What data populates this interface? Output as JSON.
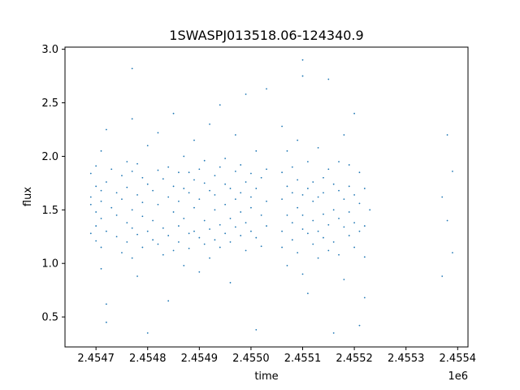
{
  "chart_data": {
    "type": "scatter",
    "title": "1SWASPJ013518.06-124340.9",
    "xlabel": "time",
    "ylabel": "flux",
    "x_offset_label": "1e6",
    "xlim": [
      2.45464,
      2.45542
    ],
    "ylim": [
      0.22,
      3.02
    ],
    "grid": false,
    "legend": "none",
    "color": "#1f77b4",
    "x_ticks": [
      2.4547,
      2.4548,
      2.4549,
      2.455,
      2.4551,
      2.4552,
      2.4553,
      2.4554
    ],
    "x_tick_labels": [
      "2.4547",
      "2.4548",
      "2.4549",
      "2.4550",
      "2.4551",
      "2.4552",
      "2.4553",
      "2.4554"
    ],
    "y_ticks": [
      0.5,
      1.0,
      1.5,
      2.0,
      2.5,
      3.0
    ],
    "y_tick_labels": [
      "0.5",
      "1.0",
      "1.5",
      "2.0",
      "2.5",
      "3.0"
    ],
    "series": [
      {
        "points": [
          [
            2.45469,
            1.62
          ],
          [
            2.45469,
            1.28
          ],
          [
            2.45469,
            1.84
          ],
          [
            2.45469,
            1.55
          ],
          [
            2.4547,
            1.35
          ],
          [
            2.4547,
            1.72
          ],
          [
            2.4547,
            1.21
          ],
          [
            2.4547,
            1.48
          ],
          [
            2.4547,
            1.91
          ],
          [
            2.45471,
            1.15
          ],
          [
            2.45471,
            1.68
          ],
          [
            2.45471,
            1.42
          ],
          [
            2.45471,
            2.05
          ],
          [
            2.45471,
            0.95
          ],
          [
            2.45471,
            1.58
          ],
          [
            2.45472,
            1.3
          ],
          [
            2.45472,
            1.76
          ],
          [
            2.45472,
            2.25
          ],
          [
            2.45472,
            0.62
          ],
          [
            2.45472,
            0.45
          ],
          [
            2.45473,
            1.52
          ],
          [
            2.45473,
            1.88
          ],
          [
            2.45474,
            1.25
          ],
          [
            2.45474,
            1.66
          ],
          [
            2.45474,
            1.45
          ],
          [
            2.45475,
            1.82
          ],
          [
            2.45475,
            1.1
          ],
          [
            2.45475,
            1.6
          ],
          [
            2.45476,
            1.38
          ],
          [
            2.45476,
            1.95
          ],
          [
            2.45476,
            1.2
          ],
          [
            2.45476,
            1.71
          ],
          [
            2.45477,
            1.33
          ],
          [
            2.45477,
            1.86
          ],
          [
            2.45477,
            1.5
          ],
          [
            2.45477,
            2.82
          ],
          [
            2.45477,
            2.35
          ],
          [
            2.45477,
            1.05
          ],
          [
            2.45478,
            1.27
          ],
          [
            2.45478,
            1.64
          ],
          [
            2.45478,
            1.93
          ],
          [
            2.45478,
            0.88
          ],
          [
            2.45479,
            1.44
          ],
          [
            2.45479,
            1.8
          ],
          [
            2.45479,
            1.15
          ],
          [
            2.45479,
            1.57
          ],
          [
            2.4548,
            1.3
          ],
          [
            2.4548,
            1.74
          ],
          [
            2.4548,
            2.1
          ],
          [
            2.4548,
            0.35
          ],
          [
            2.45481,
            1.22
          ],
          [
            2.45481,
            1.68
          ],
          [
            2.45481,
            1.4
          ],
          [
            2.45482,
            1.87
          ],
          [
            2.45482,
            1.18
          ],
          [
            2.45482,
            1.55
          ],
          [
            2.45482,
            2.22
          ],
          [
            2.45483,
            1.33
          ],
          [
            2.45483,
            1.79
          ],
          [
            2.45483,
            1.08
          ],
          [
            2.45484,
            1.62
          ],
          [
            2.45484,
            1.26
          ],
          [
            2.45484,
            1.9
          ],
          [
            2.45484,
            0.65
          ],
          [
            2.45485,
            1.48
          ],
          [
            2.45485,
            1.72
          ],
          [
            2.45485,
            1.12
          ],
          [
            2.45485,
            2.4
          ],
          [
            2.45486,
            1.35
          ],
          [
            2.45486,
            1.85
          ],
          [
            2.45486,
            1.58
          ],
          [
            2.45486,
            1.2
          ],
          [
            2.45487,
            1.7
          ],
          [
            2.45487,
            1.42
          ],
          [
            2.45487,
            2.0
          ],
          [
            2.45487,
            0.98
          ],
          [
            2.45488,
            1.28
          ],
          [
            2.45488,
            1.66
          ],
          [
            2.45488,
            1.85
          ],
          [
            2.45488,
            1.14
          ],
          [
            2.45489,
            1.52
          ],
          [
            2.45489,
            1.78
          ],
          [
            2.45489,
            1.3
          ],
          [
            2.45489,
            2.15
          ],
          [
            2.4549,
            1.24
          ],
          [
            2.4549,
            1.6
          ],
          [
            2.4549,
            1.88
          ],
          [
            2.4549,
            0.92
          ],
          [
            2.45491,
            1.4
          ],
          [
            2.45491,
            1.75
          ],
          [
            2.45491,
            1.18
          ],
          [
            2.45491,
            1.96
          ],
          [
            2.45492,
            1.32
          ],
          [
            2.45492,
            1.68
          ],
          [
            2.45492,
            2.3
          ],
          [
            2.45492,
            1.05
          ],
          [
            2.45493,
            1.5
          ],
          [
            2.45493,
            1.82
          ],
          [
            2.45493,
            1.22
          ],
          [
            2.45493,
            1.64
          ],
          [
            2.45494,
            1.36
          ],
          [
            2.45494,
            1.9
          ],
          [
            2.45494,
            1.15
          ],
          [
            2.45494,
            2.48
          ],
          [
            2.45495,
            1.55
          ],
          [
            2.45495,
            1.28
          ],
          [
            2.45495,
            1.74
          ],
          [
            2.45495,
            1.98
          ],
          [
            2.45496,
            1.42
          ],
          [
            2.45496,
            1.7
          ],
          [
            2.45496,
            1.2
          ],
          [
            2.45496,
            0.82
          ],
          [
            2.45497,
            1.6
          ],
          [
            2.45497,
            1.34
          ],
          [
            2.45497,
            1.86
          ],
          [
            2.45497,
            2.2
          ],
          [
            2.45498,
            1.26
          ],
          [
            2.45498,
            1.66
          ],
          [
            2.45498,
            1.48
          ],
          [
            2.45498,
            1.92
          ],
          [
            2.45499,
            1.38
          ],
          [
            2.45499,
            1.76
          ],
          [
            2.45499,
            1.12
          ],
          [
            2.45499,
            2.58
          ],
          [
            2.455,
            1.52
          ],
          [
            2.455,
            1.3
          ],
          [
            2.455,
            1.84
          ],
          [
            2.455,
            1.62
          ],
          [
            2.45501,
            1.24
          ],
          [
            2.45501,
            1.7
          ],
          [
            2.45501,
            2.05
          ],
          [
            2.45501,
            0.38
          ],
          [
            2.45502,
            1.45
          ],
          [
            2.45502,
            1.8
          ],
          [
            2.45502,
            1.16
          ],
          [
            2.45503,
            1.58
          ],
          [
            2.45503,
            1.35
          ],
          [
            2.45503,
            1.88
          ],
          [
            2.45503,
            2.63
          ],
          [
            2.45506,
            1.6
          ],
          [
            2.45506,
            1.3
          ],
          [
            2.45506,
            1.85
          ],
          [
            2.45506,
            1.15
          ],
          [
            2.45506,
            2.28
          ],
          [
            2.45507,
            1.45
          ],
          [
            2.45507,
            1.72
          ],
          [
            2.45507,
            0.98
          ],
          [
            2.45507,
            2.05
          ],
          [
            2.45508,
            1.38
          ],
          [
            2.45508,
            1.66
          ],
          [
            2.45508,
            1.22
          ],
          [
            2.45508,
            1.9
          ],
          [
            2.45509,
            1.52
          ],
          [
            2.45509,
            1.78
          ],
          [
            2.45509,
            1.1
          ],
          [
            2.45509,
            2.15
          ],
          [
            2.4551,
            1.32
          ],
          [
            2.4551,
            1.64
          ],
          [
            2.4551,
            1.45
          ],
          [
            2.4551,
            2.9
          ],
          [
            2.4551,
            2.75
          ],
          [
            2.4551,
            0.9
          ],
          [
            2.45511,
            1.28
          ],
          [
            2.45511,
            1.7
          ],
          [
            2.45511,
            1.95
          ],
          [
            2.45511,
            0.72
          ],
          [
            2.45512,
            1.4
          ],
          [
            2.45512,
            1.76
          ],
          [
            2.45512,
            1.18
          ],
          [
            2.45512,
            1.58
          ],
          [
            2.45513,
            1.3
          ],
          [
            2.45513,
            1.62
          ],
          [
            2.45513,
            2.08
          ],
          [
            2.45513,
            1.05
          ],
          [
            2.45514,
            1.46
          ],
          [
            2.45514,
            1.8
          ],
          [
            2.45514,
            1.24
          ],
          [
            2.45514,
            1.66
          ],
          [
            2.45515,
            1.36
          ],
          [
            2.45515,
            1.88
          ],
          [
            2.45515,
            1.12
          ],
          [
            2.45515,
            2.72
          ],
          [
            2.45516,
            1.5
          ],
          [
            2.45516,
            1.74
          ],
          [
            2.45516,
            1.2
          ],
          [
            2.45516,
            0.35
          ],
          [
            2.45517,
            1.42
          ],
          [
            2.45517,
            1.68
          ],
          [
            2.45517,
            1.95
          ],
          [
            2.45517,
            1.08
          ],
          [
            2.45518,
            1.34
          ],
          [
            2.45518,
            1.6
          ],
          [
            2.45518,
            2.2
          ],
          [
            2.45518,
            0.85
          ],
          [
            2.45519,
            1.26
          ],
          [
            2.45519,
            1.72
          ],
          [
            2.45519,
            1.48
          ],
          [
            2.45519,
            1.92
          ],
          [
            2.4552,
            1.38
          ],
          [
            2.4552,
            1.64
          ],
          [
            2.4552,
            1.15
          ],
          [
            2.4552,
            2.4
          ],
          [
            2.45521,
            1.3
          ],
          [
            2.45521,
            1.56
          ],
          [
            2.45521,
            1.85
          ],
          [
            2.45521,
            0.42
          ],
          [
            2.45522,
            1.06
          ],
          [
            2.45522,
            1.7
          ],
          [
            2.45522,
            0.68
          ],
          [
            2.45522,
            1.35
          ],
          [
            2.45523,
            1.5
          ],
          [
            2.45537,
            1.62
          ],
          [
            2.45537,
            0.88
          ],
          [
            2.45538,
            1.4
          ],
          [
            2.45538,
            2.2
          ],
          [
            2.45539,
            1.1
          ],
          [
            2.45539,
            1.86
          ]
        ]
      }
    ]
  }
}
